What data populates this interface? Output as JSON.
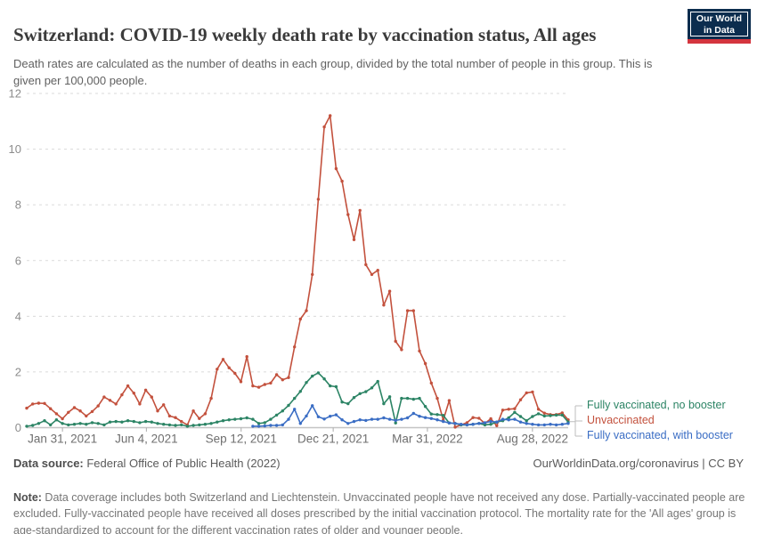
{
  "header": {
    "title": "Switzerland: COVID-19 weekly death rate by vaccination status, All ages",
    "subtitle": "Death rates are calculated as the number of deaths in each group, divided by the total number of people in this group. This is given per 100,000 people.",
    "logo": {
      "line1": "Our World",
      "line2": "in Data",
      "bg_color": "#0C2D4E",
      "stripe_color": "#D4353E"
    }
  },
  "chart_data": {
    "type": "line",
    "title": "Switzerland: COVID-19 weekly death rate by vaccination status, All ages",
    "xlabel": "",
    "ylabel": "",
    "unit": "deaths per 100,000 people",
    "ylim": [
      0,
      12
    ],
    "y_ticks": [
      0,
      2,
      4,
      6,
      8,
      10,
      12
    ],
    "grid": "horizontal-dashed",
    "legend_position": "right",
    "x_ticks": [
      {
        "label": "Jan 31, 2021",
        "f": 0.066
      },
      {
        "label": "Jun 4, 2021",
        "f": 0.221
      },
      {
        "label": "Sep 12, 2021",
        "f": 0.396
      },
      {
        "label": "Dec 21, 2021",
        "f": 0.566
      },
      {
        "label": "Mar 31, 2022",
        "f": 0.74
      },
      {
        "label": "Aug 28, 2022",
        "f": 0.934
      }
    ],
    "series": [
      {
        "name": "Unvaccinated",
        "legend_label": "Unvaccinated",
        "color": "#C3513D",
        "values": [
          0.7,
          0.85,
          0.88,
          0.87,
          0.68,
          0.5,
          0.32,
          0.55,
          0.72,
          0.6,
          0.42,
          0.58,
          0.78,
          1.1,
          0.98,
          0.85,
          1.18,
          1.5,
          1.24,
          0.85,
          1.35,
          1.1,
          0.6,
          0.82,
          0.42,
          0.36,
          0.22,
          0.1,
          0.6,
          0.33,
          0.5,
          1.05,
          2.1,
          2.45,
          2.15,
          1.95,
          1.65,
          2.55,
          1.5,
          1.45,
          1.55,
          1.6,
          1.9,
          1.72,
          1.8,
          2.9,
          3.9,
          4.2,
          5.5,
          8.2,
          10.8,
          11.2,
          9.3,
          8.85,
          7.65,
          6.75,
          7.8,
          5.85,
          5.5,
          5.65,
          4.4,
          4.9,
          3.1,
          2.8,
          4.2,
          4.2,
          2.75,
          2.3,
          1.6,
          1.05,
          0.27,
          0.97,
          0.02,
          0.1,
          0.18,
          0.36,
          0.34,
          0.15,
          0.32,
          0.07,
          0.63,
          0.66,
          0.68,
          1.0,
          1.25,
          1.28,
          0.66,
          0.52,
          0.47,
          0.47,
          0.53,
          0.28
        ]
      },
      {
        "name": "Fully vaccinated, no booster",
        "legend_label": "Fully vaccinated, no booster",
        "color": "#2C8465",
        "values": [
          0.05,
          0.08,
          0.15,
          0.25,
          0.1,
          0.28,
          0.15,
          0.1,
          0.12,
          0.15,
          0.12,
          0.18,
          0.15,
          0.1,
          0.2,
          0.22,
          0.2,
          0.25,
          0.22,
          0.18,
          0.22,
          0.2,
          0.15,
          0.12,
          0.1,
          0.08,
          0.1,
          0.05,
          0.08,
          0.1,
          0.12,
          0.15,
          0.2,
          0.25,
          0.28,
          0.3,
          0.32,
          0.35,
          0.3,
          0.15,
          0.18,
          0.3,
          0.45,
          0.6,
          0.8,
          1.05,
          1.3,
          1.62,
          1.85,
          1.97,
          1.75,
          1.5,
          1.47,
          0.92,
          0.86,
          1.08,
          1.22,
          1.29,
          1.43,
          1.66,
          0.86,
          1.11,
          0.17,
          1.05,
          1.05,
          1.02,
          1.05,
          0.76,
          0.49,
          0.47,
          0.44,
          0.17,
          0.15,
          0.1,
          0.1,
          0.12,
          0.15,
          0.1,
          0.12,
          0.2,
          0.25,
          0.35,
          0.55,
          0.4,
          0.25,
          0.4,
          0.5,
          0.42,
          0.43,
          0.45,
          0.45,
          0.2
        ]
      },
      {
        "name": "Fully vaccinated, with booster",
        "legend_label": "Fully vaccinated, with booster",
        "color": "#3A6DC4",
        "values": [
          null,
          null,
          null,
          null,
          null,
          null,
          null,
          null,
          null,
          null,
          null,
          null,
          null,
          null,
          null,
          null,
          null,
          null,
          null,
          null,
          null,
          null,
          null,
          null,
          null,
          null,
          null,
          null,
          null,
          null,
          null,
          null,
          null,
          null,
          null,
          null,
          null,
          null,
          0.05,
          0.05,
          0.06,
          0.08,
          0.08,
          0.1,
          0.3,
          0.66,
          0.15,
          0.42,
          0.79,
          0.39,
          0.31,
          0.41,
          0.46,
          0.28,
          0.15,
          0.22,
          0.28,
          0.26,
          0.3,
          0.3,
          0.35,
          0.3,
          0.26,
          0.3,
          0.35,
          0.51,
          0.41,
          0.36,
          0.33,
          0.28,
          0.22,
          0.17,
          0.15,
          0.12,
          0.1,
          0.12,
          0.15,
          0.18,
          0.22,
          0.2,
          0.3,
          0.28,
          0.3,
          0.2,
          0.15,
          0.12,
          0.1,
          0.1,
          0.12,
          0.1,
          0.12,
          0.15
        ]
      }
    ]
  },
  "footer": {
    "source_label": "Data source:",
    "source_value": " Federal Office of Public Health (2022)",
    "credit": "OurWorldinData.org/coronavirus | CC BY",
    "note_label": "Note:",
    "note_text": " Data coverage includes both Switzerland and Liechtenstein. Unvaccinated people have not received any dose. Partially-vaccinated people are excluded. Fully-vaccinated people have received all doses prescribed by the initial vaccination protocol. The mortality rate for the 'All ages' group is age-standardized to account for the different vaccination rates of older and younger people."
  }
}
